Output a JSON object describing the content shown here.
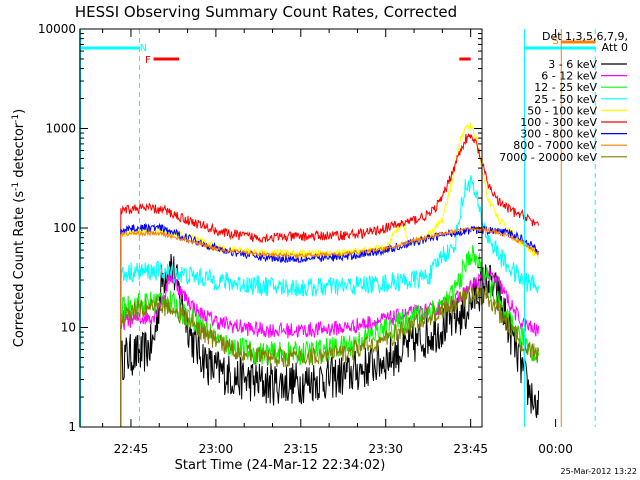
{
  "chart_data": {
    "type": "line",
    "title": "HESSI Observing Summary Count Rates, Corrected",
    "xlabel": "Start Time (24-Mar-12 22:34:02)",
    "ylabel": "Corrected Count Rate (s",
    "ylabel_sup1": "-1",
    "ylabel_mid": " detector",
    "ylabel_sup2": "-1",
    "ylabel_end": ")",
    "yscale": "log",
    "ylim": [
      1,
      10000
    ],
    "xlim_minutes": [
      -9,
      62
    ],
    "xticks": [
      {
        "m": 0,
        "label": "22:45"
      },
      {
        "m": 15,
        "label": "23:00"
      },
      {
        "m": 30,
        "label": "23:15"
      },
      {
        "m": 45,
        "label": "23:30"
      },
      {
        "m": 60,
        "label": "23:45"
      },
      {
        "m": 75,
        "label": "00:00"
      }
    ],
    "yticks": [
      {
        "v": 1,
        "label": "1"
      },
      {
        "v": 10,
        "label": "10"
      },
      {
        "v": 100,
        "label": "100"
      },
      {
        "v": 1000,
        "label": "1000"
      },
      {
        "v": 10000,
        "label": "10000"
      }
    ],
    "legend_header": [
      "Det 1,3,5,6,7,9,",
      "Att 0"
    ],
    "series": [
      {
        "name": "3 - 6 keV",
        "color": "#000000",
        "noise": 0.22,
        "pts": [
          [
            -1.8,
            4.5
          ],
          [
            -1,
            5.2
          ],
          [
            2,
            5.4
          ],
          [
            4,
            7
          ],
          [
            5.5,
            30
          ],
          [
            7,
            45
          ],
          [
            9,
            18
          ],
          [
            11,
            7
          ],
          [
            14,
            4
          ],
          [
            18,
            3.2
          ],
          [
            24,
            2.7
          ],
          [
            30,
            2.8
          ],
          [
            38,
            3.3
          ],
          [
            45,
            4.8
          ],
          [
            52,
            8
          ],
          [
            56,
            11
          ],
          [
            59,
            14
          ],
          [
            61,
            22
          ],
          [
            63,
            30
          ],
          [
            65,
            20
          ],
          [
            67,
            9
          ],
          [
            69,
            4
          ],
          [
            70,
            2.5
          ],
          [
            72,
            1.5
          ]
        ]
      },
      {
        "name": "6 - 12 keV",
        "color": "#ff00ff",
        "noise": 0.08,
        "pts": [
          [
            -1.8,
            11
          ],
          [
            0,
            12
          ],
          [
            4,
            13
          ],
          [
            6,
            22
          ],
          [
            7,
            34
          ],
          [
            9,
            22
          ],
          [
            12,
            14
          ],
          [
            16,
            11
          ],
          [
            22,
            9.5
          ],
          [
            30,
            9.3
          ],
          [
            38,
            10
          ],
          [
            45,
            12
          ],
          [
            50,
            14
          ],
          [
            54,
            15
          ],
          [
            58,
            20
          ],
          [
            61,
            28
          ],
          [
            63,
            35
          ],
          [
            65,
            28
          ],
          [
            67,
            17
          ],
          [
            69,
            11
          ],
          [
            72,
            9
          ]
        ]
      },
      {
        "name": "12 - 25 keV",
        "color": "#00ff00",
        "noise": 0.12,
        "pts": [
          [
            -1.8,
            15
          ],
          [
            0,
            17
          ],
          [
            4,
            18
          ],
          [
            6,
            20
          ],
          [
            8,
            16
          ],
          [
            12,
            11
          ],
          [
            16,
            7
          ],
          [
            22,
            5.5
          ],
          [
            30,
            5.5
          ],
          [
            38,
            6.5
          ],
          [
            45,
            9.5
          ],
          [
            50,
            13
          ],
          [
            53,
            15
          ],
          [
            56,
            18
          ],
          [
            58,
            30
          ],
          [
            60,
            55
          ],
          [
            62,
            40
          ],
          [
            64,
            22
          ],
          [
            66,
            13
          ],
          [
            68,
            9
          ],
          [
            70,
            7
          ],
          [
            72,
            5
          ]
        ]
      },
      {
        "name": "25 - 50 keV",
        "color": "#00ffff",
        "noise": 0.1,
        "pts": [
          [
            -1.8,
            33
          ],
          [
            0,
            36
          ],
          [
            5,
            37
          ],
          [
            8,
            35
          ],
          [
            12,
            32
          ],
          [
            18,
            28
          ],
          [
            24,
            26
          ],
          [
            30,
            25
          ],
          [
            38,
            26
          ],
          [
            45,
            28
          ],
          [
            50,
            30
          ],
          [
            53,
            34
          ],
          [
            55,
            55
          ],
          [
            57,
            60
          ],
          [
            58,
            130
          ],
          [
            59,
            250
          ],
          [
            60,
            300
          ],
          [
            61,
            200
          ],
          [
            62,
            120
          ],
          [
            63,
            80
          ],
          [
            66,
            45
          ],
          [
            69,
            30
          ],
          [
            72,
            26
          ]
        ]
      },
      {
        "name": "50 - 100 keV",
        "color": "#ffff00",
        "noise": 0.04,
        "pts": [
          [
            -1.8,
            88
          ],
          [
            0,
            92
          ],
          [
            5,
            95
          ],
          [
            10,
            82
          ],
          [
            16,
            62
          ],
          [
            24,
            56
          ],
          [
            30,
            55
          ],
          [
            38,
            56
          ],
          [
            45,
            62
          ],
          [
            48,
            120
          ],
          [
            49,
            70
          ],
          [
            52,
            80
          ],
          [
            55,
            120
          ],
          [
            57,
            350
          ],
          [
            58,
            700
          ],
          [
            59,
            1000
          ],
          [
            60,
            1050
          ],
          [
            61,
            800
          ],
          [
            62,
            400
          ],
          [
            63,
            200
          ],
          [
            65,
            120
          ],
          [
            68,
            80
          ],
          [
            72,
            50
          ]
        ]
      },
      {
        "name": "100 - 300 keV",
        "color": "#ff0000",
        "noise": 0.05,
        "pts": [
          [
            -1.8,
            145
          ],
          [
            0,
            155
          ],
          [
            3,
            158
          ],
          [
            6,
            150
          ],
          [
            10,
            120
          ],
          [
            16,
            90
          ],
          [
            22,
            80
          ],
          [
            30,
            82
          ],
          [
            38,
            85
          ],
          [
            42,
            90
          ],
          [
            45,
            100
          ],
          [
            50,
            120
          ],
          [
            53,
            140
          ],
          [
            55,
            200
          ],
          [
            57,
            400
          ],
          [
            59,
            780
          ],
          [
            60,
            820
          ],
          [
            61,
            700
          ],
          [
            62,
            450
          ],
          [
            63,
            280
          ],
          [
            65,
            180
          ],
          [
            68,
            140
          ],
          [
            70,
            130
          ],
          [
            72,
            100
          ]
        ]
      },
      {
        "name": "300 - 800 keV",
        "color": "#0000ff",
        "noise": 0.04,
        "pts": [
          [
            -1.8,
            95
          ],
          [
            0,
            100
          ],
          [
            5,
            100
          ],
          [
            10,
            80
          ],
          [
            16,
            60
          ],
          [
            24,
            50
          ],
          [
            30,
            49
          ],
          [
            38,
            51
          ],
          [
            45,
            60
          ],
          [
            50,
            72
          ],
          [
            55,
            85
          ],
          [
            58,
            92
          ],
          [
            60,
            95
          ],
          [
            63,
            95
          ],
          [
            66,
            90
          ],
          [
            69,
            80
          ],
          [
            72,
            58
          ]
        ]
      },
      {
        "name": "800 - 7000 keV",
        "color": "#ff7f00",
        "noise": 0.02,
        "pts": [
          [
            -1.8,
            86
          ],
          [
            0,
            88
          ],
          [
            5,
            88
          ],
          [
            10,
            75
          ],
          [
            16,
            60
          ],
          [
            24,
            54
          ],
          [
            30,
            53
          ],
          [
            38,
            55
          ],
          [
            45,
            62
          ],
          [
            50,
            75
          ],
          [
            55,
            88
          ],
          [
            58,
            95
          ],
          [
            60,
            98
          ],
          [
            63,
            96
          ],
          [
            66,
            85
          ],
          [
            69,
            72
          ],
          [
            72,
            55
          ]
        ]
      },
      {
        "name": "7000 - 20000 keV",
        "color": "#808000",
        "noise": 0.1,
        "pts": [
          [
            -1.8,
            12
          ],
          [
            0,
            14
          ],
          [
            4,
            17
          ],
          [
            7,
            16
          ],
          [
            10,
            12
          ],
          [
            14,
            8
          ],
          [
            18,
            6
          ],
          [
            24,
            5
          ],
          [
            30,
            5
          ],
          [
            38,
            5.5
          ],
          [
            45,
            7.5
          ],
          [
            50,
            11
          ],
          [
            55,
            15
          ],
          [
            58,
            18
          ],
          [
            60,
            22
          ],
          [
            63,
            20
          ],
          [
            66,
            12
          ],
          [
            69,
            7
          ],
          [
            72,
            5
          ]
        ]
      }
    ],
    "markers": [
      {
        "type": "F",
        "label": "F",
        "color": "#ff0000"
      },
      {
        "type": "N",
        "label": "N",
        "color": "#00ffff"
      },
      {
        "type": "S",
        "label": "S",
        "color": "#ff7f00"
      }
    ]
  },
  "footer_date": "25-Mar-2012 13:22"
}
